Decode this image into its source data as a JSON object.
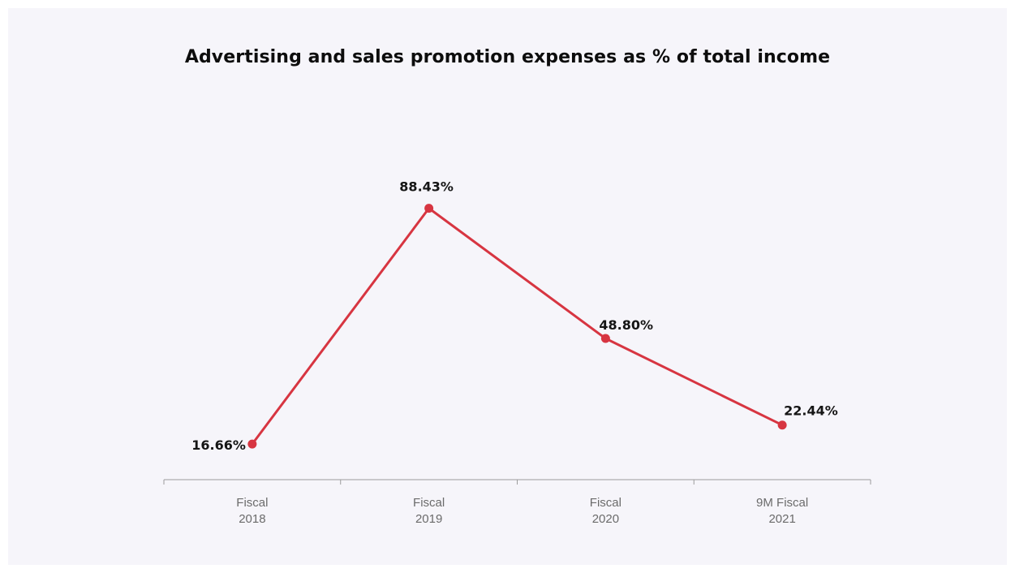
{
  "chart_data": {
    "type": "line",
    "title": "Advertising and sales promotion expenses as % of total income",
    "categories": [
      [
        "Fiscal",
        "2018"
      ],
      [
        "Fiscal",
        "2019"
      ],
      [
        "Fiscal",
        "2020"
      ],
      [
        "9M Fiscal",
        "2021"
      ]
    ],
    "series": [
      {
        "values": [
          16.66,
          88.43,
          48.8,
          22.44
        ],
        "data_labels": [
          "16.66%",
          "88.43%",
          "48.80%",
          "22.44%"
        ],
        "color": "#d73541"
      }
    ],
    "ylim": [
      11,
      96
    ],
    "grid": false,
    "legend": "none",
    "xlabel": "",
    "ylabel": ""
  },
  "colors": {
    "background": "#f6f5fa",
    "line": "#d73541",
    "axis": "#9c9c9c",
    "title": "#0d0d0d",
    "tick_text": "#6b6b6b"
  }
}
